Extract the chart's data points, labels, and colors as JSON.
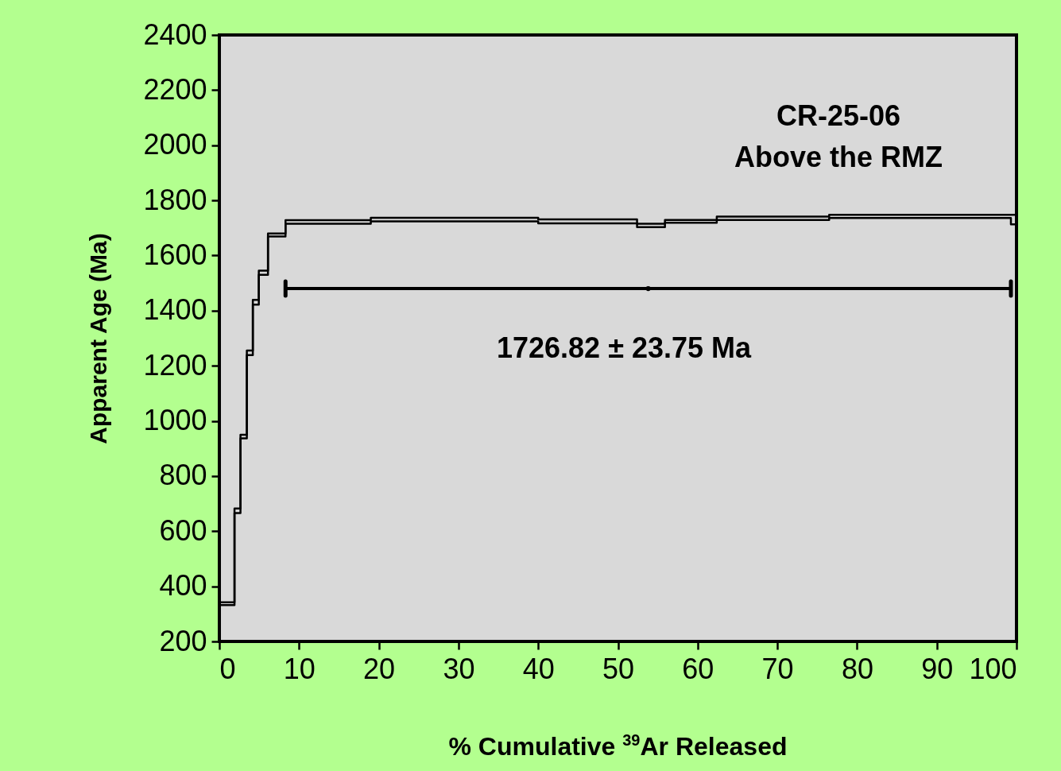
{
  "chart_data": {
    "type": "step",
    "xlabel": "% Cumulative $^{39}$Ar Released",
    "ylabel": "Apparent Age (Ma)",
    "annotations": [
      "CR-25-06",
      "Above the RMZ",
      "1726.82 ± 23.75 Ma"
    ],
    "series": [
      {
        "color": "#000000",
        "x": [
          0,
          1.9,
          2.65,
          3.45,
          4.2,
          4.95,
          6.1,
          8.3,
          19,
          40,
          52.4,
          55.9,
          62.4,
          76.5,
          99.3,
          100
        ],
        "values": [
          342,
          682,
          950,
          1255,
          1439,
          1545,
          1680,
          1728,
          1737,
          1731,
          1715,
          1729,
          1741,
          1748,
          1748,
          1748
        ]
      },
      {
        "color": "#000000",
        "x": [
          0,
          1.9,
          2.65,
          3.45,
          4.2,
          4.95,
          6.1,
          8.3,
          19,
          40,
          52.4,
          55.9,
          62.4,
          76.5,
          99.3,
          100
        ],
        "values": [
          332,
          666,
          937,
          1239,
          1422,
          1530,
          1669,
          1715,
          1724,
          1717,
          1703,
          1719,
          1729,
          1736,
          1713,
          1713
        ]
      },
      {
        "type": "scatter",
        "color": "#000000",
        "x": [
          53.8
        ],
        "values": [
          1480
        ],
        "xerrors": [
          [
            8.3,
            99.3
          ]
        ]
      }
    ],
    "xlim": [
      0,
      100
    ],
    "xticks": [
      0,
      10,
      20,
      30,
      40,
      50,
      60,
      70,
      80,
      90,
      100
    ],
    "ylim": [
      200,
      2400
    ],
    "yticks": [
      200,
      400,
      600,
      800,
      1000,
      1200,
      1400,
      1600,
      1800,
      2000,
      2200,
      2400
    ],
    "grid": false,
    "line_style": "solid"
  }
}
